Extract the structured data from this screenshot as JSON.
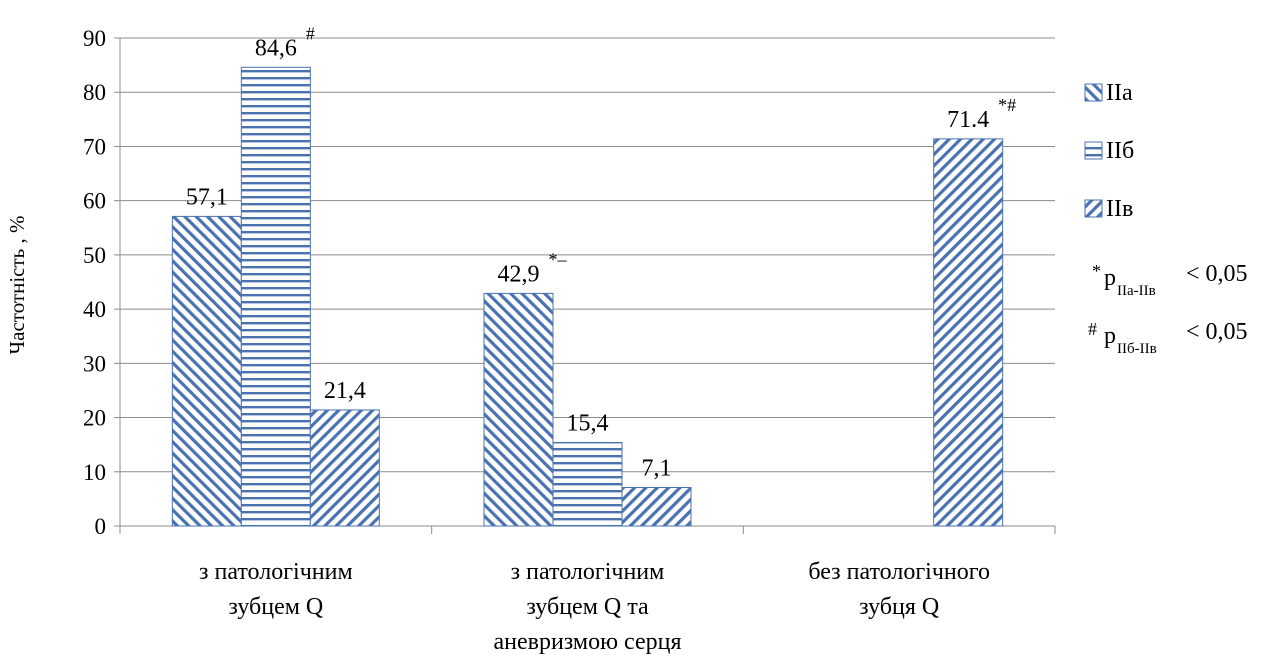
{
  "chart_data": {
    "type": "bar",
    "ylabel": "Частотність , %",
    "ylim": [
      0,
      90
    ],
    "yticks": [
      "0",
      "10",
      "20",
      "30",
      "40",
      "50",
      "60",
      "70",
      "80",
      "90"
    ],
    "grid": true,
    "legend_position": "right",
    "categories": [
      [
        "з патологічним",
        "зубцем Q"
      ],
      [
        "з патологічним",
        "зубцем Q та",
        "аневризмою серця"
      ],
      [
        "без патологічного",
        "зубця Q"
      ]
    ],
    "series": [
      {
        "name": "IIa",
        "pattern": "diag-left",
        "color": "#4a72b0",
        "values": [
          57.1,
          42.9,
          null
        ],
        "labels": [
          "57,1",
          "42,9",
          ""
        ],
        "marks": [
          "",
          "*–",
          ""
        ]
      },
      {
        "name": "IIб",
        "pattern": "horizontal",
        "color": "#4a72b0",
        "values": [
          84.6,
          15.4,
          null
        ],
        "labels": [
          "84,6",
          "15,4",
          ""
        ],
        "marks": [
          "#",
          "",
          ""
        ]
      },
      {
        "name": "IIв",
        "pattern": "diag-right",
        "color": "#4a72b0",
        "values": [
          21.4,
          7.1,
          71.4
        ],
        "labels": [
          "21,4",
          "7,1",
          "71.4"
        ],
        "marks": [
          "",
          "",
          "*#"
        ]
      }
    ],
    "notes": [
      {
        "symbol": "*",
        "p": "p",
        "sub": "IIa-IIв",
        "text": "< 0,05"
      },
      {
        "symbol": "#",
        "p": "p",
        "sub": "IIб-IIв",
        "text": "< 0,05"
      }
    ]
  }
}
